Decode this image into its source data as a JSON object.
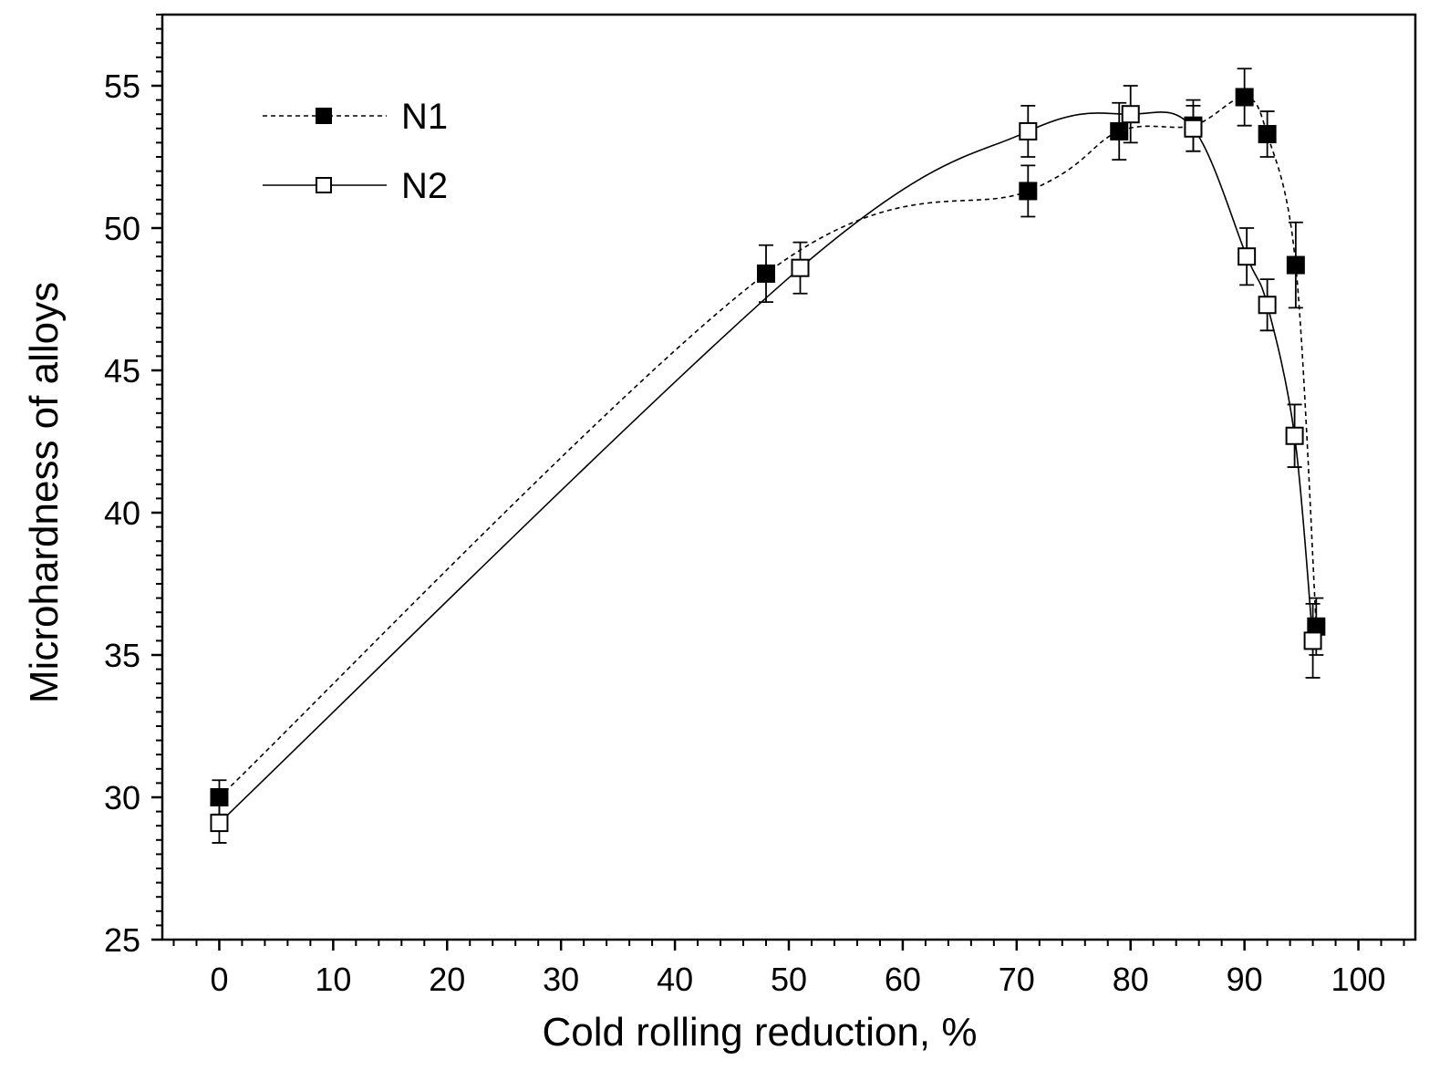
{
  "chart_data": {
    "type": "scatter",
    "title": "",
    "xlabel": "Cold rolling reduction, %",
    "ylabel": "Microhardness of alloys",
    "xlim": [
      -5,
      105
    ],
    "ylim": [
      25,
      57.5
    ],
    "xticks": [
      "0",
      "10",
      "20",
      "30",
      "40",
      "50",
      "60",
      "70",
      "80",
      "90",
      "100"
    ],
    "yticks": [
      "25",
      "30",
      "35",
      "40",
      "45",
      "50",
      "55"
    ],
    "grid": false,
    "legend_position": "top-left",
    "series": [
      {
        "name": "N1",
        "marker": "filled-square",
        "line": "dotted",
        "color": "#000000",
        "x": [
          0,
          48,
          71,
          79,
          85.5,
          90,
          92,
          94.5,
          96.3
        ],
        "y": [
          30.0,
          48.4,
          51.3,
          53.4,
          53.6,
          54.6,
          53.3,
          48.7,
          36.0
        ],
        "yerr": [
          0.6,
          1.0,
          0.9,
          1.0,
          0.9,
          1.0,
          0.8,
          1.5,
          1.0
        ]
      },
      {
        "name": "N2",
        "marker": "open-square",
        "line": "solid",
        "color": "#000000",
        "x": [
          0,
          51,
          71,
          80,
          85.5,
          90.2,
          92,
          94.4,
          96
        ],
        "y": [
          29.1,
          48.6,
          53.4,
          54.0,
          53.5,
          49.0,
          47.3,
          42.7,
          35.5
        ],
        "yerr": [
          0.7,
          0.9,
          0.9,
          1.0,
          0.8,
          1.0,
          0.9,
          1.1,
          1.3
        ]
      }
    ]
  }
}
